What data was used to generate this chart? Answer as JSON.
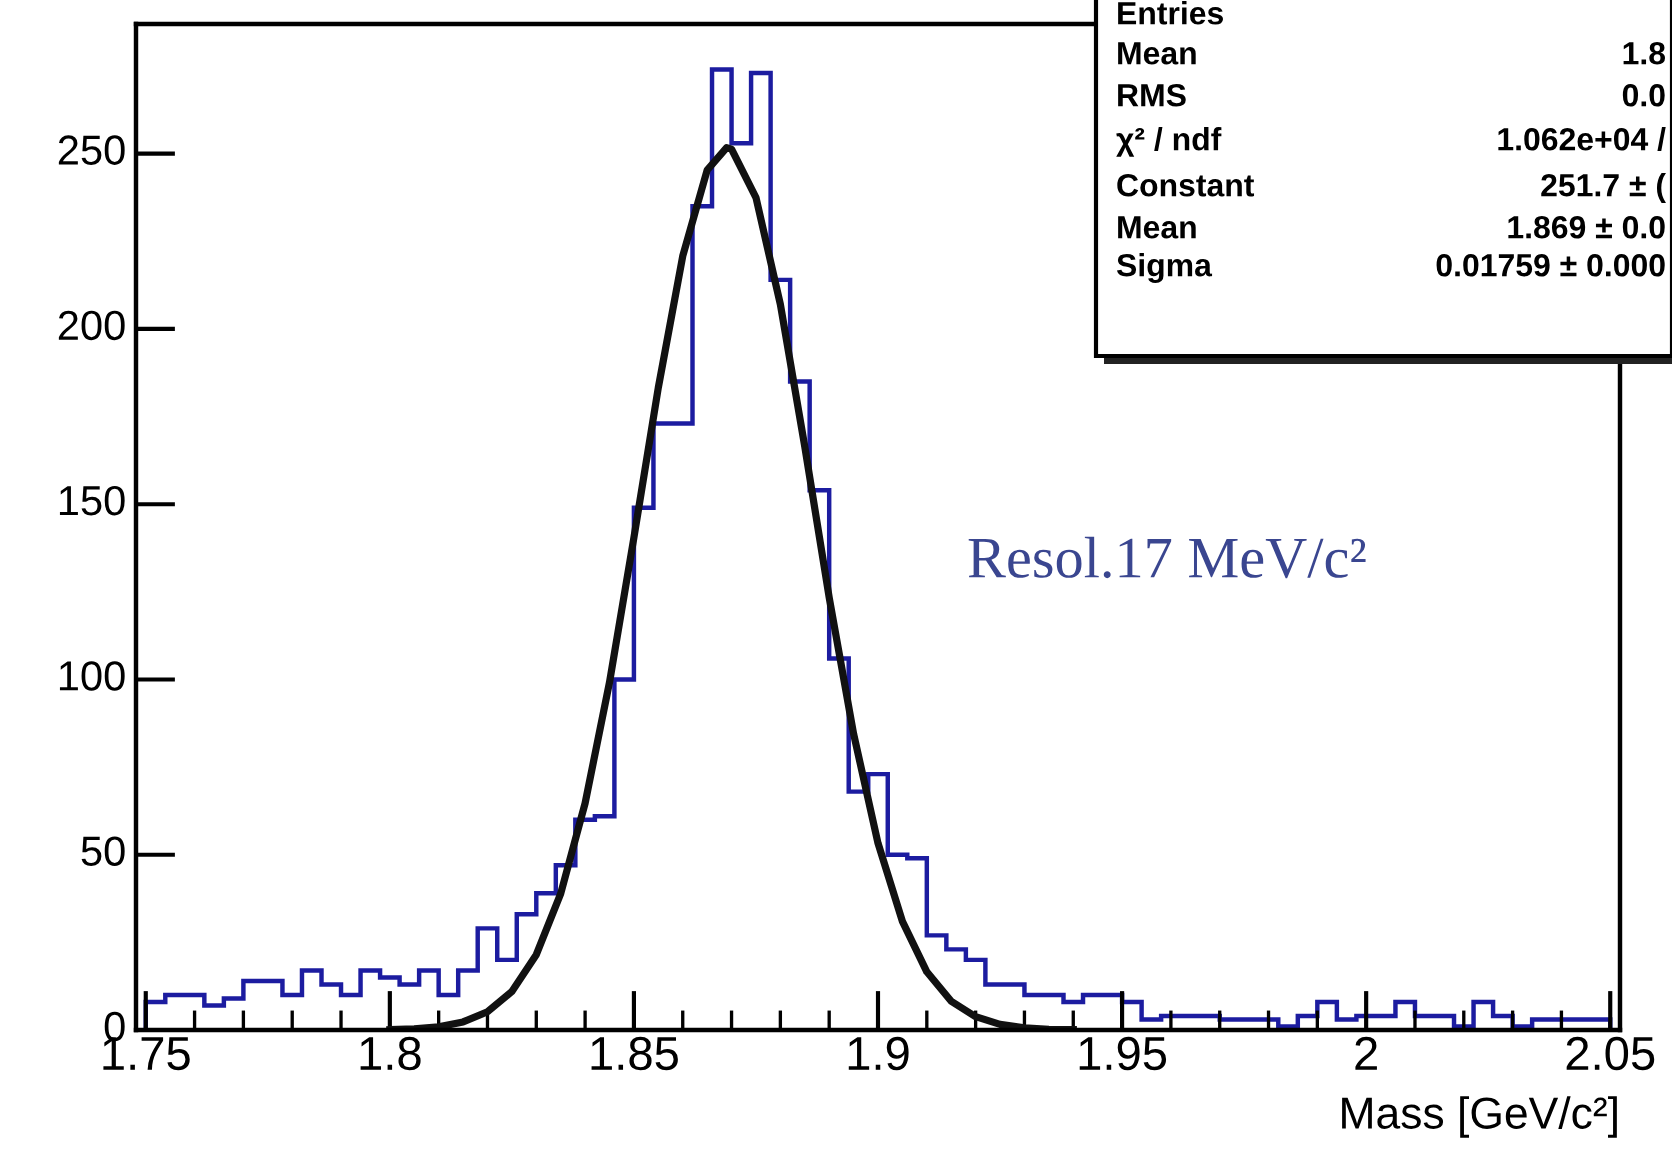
{
  "chart_data": {
    "type": "histogram",
    "xlabel": "Mass [GeV/c²]",
    "bins": [
      1.75,
      1.754,
      1.758,
      1.762,
      1.766,
      1.77,
      1.774,
      1.778,
      1.782,
      1.786,
      1.79,
      1.794,
      1.798,
      1.802,
      1.806,
      1.81,
      1.814,
      1.818,
      1.822,
      1.826,
      1.83,
      1.834,
      1.838,
      1.842,
      1.846,
      1.85,
      1.854,
      1.858,
      1.862,
      1.866,
      1.87,
      1.874,
      1.878,
      1.882,
      1.886,
      1.89,
      1.894,
      1.898,
      1.902,
      1.906,
      1.91,
      1.914,
      1.918,
      1.922,
      1.926,
      1.93,
      1.934,
      1.938,
      1.942,
      1.946,
      1.95,
      1.954,
      1.958,
      1.962,
      1.966,
      1.97,
      1.974,
      1.978,
      1.982,
      1.986,
      1.99,
      1.994,
      1.998,
      2.002,
      2.006,
      2.01,
      2.014,
      2.018,
      2.022,
      2.026,
      2.03,
      2.034,
      2.038,
      2.042,
      2.046,
      2.05
    ],
    "values": [
      8,
      10,
      10,
      7,
      9,
      14,
      14,
      10,
      17,
      13,
      10,
      17,
      15,
      13,
      17,
      10,
      17,
      29,
      20,
      33,
      39,
      47,
      60,
      61,
      100,
      149,
      173,
      173,
      235,
      274,
      253,
      273,
      214,
      185,
      154,
      106,
      68,
      73,
      50,
      49,
      27,
      23,
      20,
      13,
      13,
      10,
      10,
      8,
      10,
      10,
      8,
      3,
      4,
      4,
      4,
      3,
      3,
      3,
      1,
      4,
      8,
      3,
      4,
      4,
      8,
      4,
      4,
      1,
      8,
      4,
      1,
      3,
      3,
      3,
      3
    ],
    "color": "#1c1ca0",
    "series": [
      {
        "type": "line",
        "color": "#111111",
        "x": [
          1.8,
          1.805,
          1.81,
          1.815,
          1.82,
          1.825,
          1.83,
          1.835,
          1.84,
          1.845,
          1.85,
          1.855,
          1.86,
          1.865,
          1.869,
          1.87,
          1.875,
          1.88,
          1.885,
          1.89,
          1.895,
          1.9,
          1.905,
          1.91,
          1.915,
          1.92,
          1.925,
          1.93,
          1.935,
          1.94
        ],
        "values": [
          0.1,
          0.3,
          0.9,
          2.3,
          5.2,
          11.0,
          21.5,
          38.9,
          64.7,
          99.2,
          140.5,
          183.3,
          220.8,
          245.3,
          251.7,
          251.3,
          237.5,
          207.0,
          166.4,
          123.4,
          84.5,
          53.3,
          31.0,
          16.6,
          8.2,
          3.8,
          1.6,
          0.6,
          0.2,
          0.1
        ]
      }
    ],
    "xlim": [
      1.748,
      2.052
    ],
    "xticks": [
      1.75,
      {
        "value": 1.76,
        "label": null
      },
      {
        "value": 1.77,
        "label": null
      },
      {
        "value": 1.78,
        "label": null
      },
      {
        "value": 1.79,
        "label": null
      },
      1.8,
      {
        "value": 1.81,
        "label": null
      },
      {
        "value": 1.82,
        "label": null
      },
      {
        "value": 1.83,
        "label": null
      },
      {
        "value": 1.84,
        "label": null
      },
      1.85,
      {
        "value": 1.86,
        "label": null
      },
      {
        "value": 1.87,
        "label": null
      },
      {
        "value": 1.88,
        "label": null
      },
      {
        "value": 1.89,
        "label": null
      },
      1.9,
      {
        "value": 1.91,
        "label": null
      },
      {
        "value": 1.92,
        "label": null
      },
      {
        "value": 1.93,
        "label": null
      },
      {
        "value": 1.94,
        "label": null
      },
      1.95,
      {
        "value": 1.96,
        "label": null
      },
      {
        "value": 1.97,
        "label": null
      },
      {
        "value": 1.98,
        "label": null
      },
      {
        "value": 1.99,
        "label": null
      },
      2,
      {
        "value": 2.01,
        "label": null
      },
      {
        "value": 2.02,
        "label": null
      },
      {
        "value": 2.03,
        "label": null
      },
      {
        "value": 2.04,
        "label": null
      },
      2.05
    ],
    "ylim": [
      0,
      287
    ],
    "yticks": [
      0,
      50,
      100,
      150,
      200,
      250
    ],
    "grid": false,
    "legend": false,
    "annotations": [
      "Resol.17 MeV/c²",
      "Entries",
      "Mean",
      "1.8",
      "RMS",
      "0.0",
      "χ² / ndf",
      "1.062e+04 /",
      "Constant",
      "251.7 ± (",
      "Mean",
      "1.869 ± 0.0",
      "Sigma",
      "0.01759 ± 0.000"
    ]
  }
}
